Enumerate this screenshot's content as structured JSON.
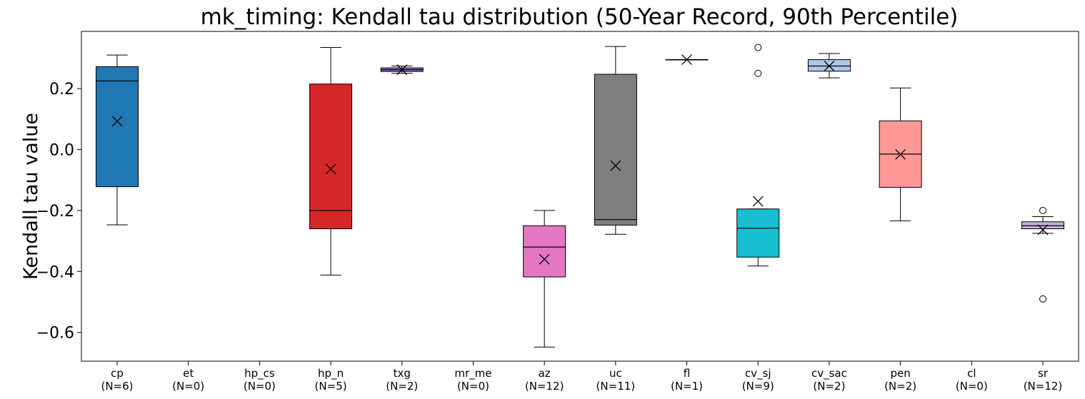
{
  "chart_data": {
    "type": "box",
    "title": "mk_timing: Kendall tau distribution (50-Year Record, 90th Percentile)",
    "xlabel": "",
    "ylabel": "Kendall tau value",
    "ylim": [
      -0.7,
      0.385
    ],
    "yticks": [
      0.2,
      0.0,
      -0.2,
      -0.4,
      -0.6
    ],
    "ytick_labels": [
      "0.2",
      "0.0",
      "−0.2",
      "−0.4",
      "−0.6"
    ],
    "grid": false,
    "categories": [
      {
        "name": "cp",
        "label": "cp",
        "n_label": "(N=6)",
        "color": "#1f77b4",
        "stats": {
          "whislo": -0.247,
          "q1": -0.122,
          "med": 0.225,
          "q3": 0.272,
          "whishi": 0.31,
          "mean": 0.093
        },
        "fliers": []
      },
      {
        "name": "et",
        "label": "et",
        "n_label": "(N=0)",
        "color": "",
        "stats": null,
        "fliers": []
      },
      {
        "name": "hp_cs",
        "label": "hp_cs",
        "n_label": "(N=0)",
        "color": "",
        "stats": null,
        "fliers": []
      },
      {
        "name": "hp_n",
        "label": "hp_n",
        "n_label": "(N=5)",
        "color": "#d62728",
        "stats": {
          "whislo": -0.412,
          "q1": -0.26,
          "med": -0.2,
          "q3": 0.215,
          "whishi": 0.335,
          "mean": -0.064
        },
        "fliers": []
      },
      {
        "name": "txg",
        "label": "txg",
        "n_label": "(N=2)",
        "color": "#9467bd",
        "stats": {
          "whislo": 0.25,
          "q1": 0.256,
          "med": 0.262,
          "q3": 0.268,
          "whishi": 0.274,
          "mean": 0.262
        },
        "fliers": []
      },
      {
        "name": "mr_me",
        "label": "mr_me",
        "n_label": "(N=0)",
        "color": "",
        "stats": null,
        "fliers": []
      },
      {
        "name": "az",
        "label": "az",
        "n_label": "(N=12)",
        "color": "#e377c2",
        "stats": {
          "whislo": -0.648,
          "q1": -0.418,
          "med": -0.32,
          "q3": -0.25,
          "whishi": -0.2,
          "mean": -0.36
        },
        "fliers": []
      },
      {
        "name": "uc",
        "label": "uc",
        "n_label": "(N=11)",
        "color": "#7f7f7f",
        "stats": {
          "whislo": -0.278,
          "q1": -0.248,
          "med": -0.23,
          "q3": 0.247,
          "whishi": 0.338,
          "mean": -0.053
        },
        "fliers": []
      },
      {
        "name": "fl",
        "label": "fl",
        "n_label": "(N=1)",
        "color": "#bcbd22",
        "stats": {
          "whislo": 0.295,
          "q1": 0.295,
          "med": 0.295,
          "q3": 0.295,
          "whishi": 0.295,
          "mean": 0.295
        },
        "fliers": []
      },
      {
        "name": "cv_sj",
        "label": "cv_sj",
        "n_label": "(N=9)",
        "color": "#17becf",
        "stats": {
          "whislo": -0.382,
          "q1": -0.353,
          "med": -0.258,
          "q3": -0.195,
          "whishi": -0.195,
          "mean": -0.17
        },
        "fliers": [
          0.335,
          0.25
        ]
      },
      {
        "name": "cv_sac",
        "label": "cv_sac",
        "n_label": "(N=2)",
        "color": "#aec7e8",
        "stats": {
          "whislo": 0.235,
          "q1": 0.257,
          "med": 0.274,
          "q3": 0.295,
          "whishi": 0.315,
          "mean": 0.274
        },
        "fliers": []
      },
      {
        "name": "pen",
        "label": "pen",
        "n_label": "(N=2)",
        "color": "#ff9896",
        "stats": {
          "whislo": -0.234,
          "q1": -0.124,
          "med": -0.015,
          "q3": 0.094,
          "whishi": 0.202,
          "mean": -0.016
        },
        "fliers": []
      },
      {
        "name": "cl",
        "label": "cl",
        "n_label": "(N=0)",
        "color": "",
        "stats": null,
        "fliers": []
      },
      {
        "name": "sr",
        "label": "sr",
        "n_label": "(N=12)",
        "color": "#c5b0d5",
        "stats": {
          "whislo": -0.275,
          "q1": -0.26,
          "med": -0.25,
          "q3": -0.237,
          "whishi": -0.22,
          "mean": -0.263
        },
        "fliers": [
          -0.2,
          -0.49
        ]
      }
    ]
  }
}
